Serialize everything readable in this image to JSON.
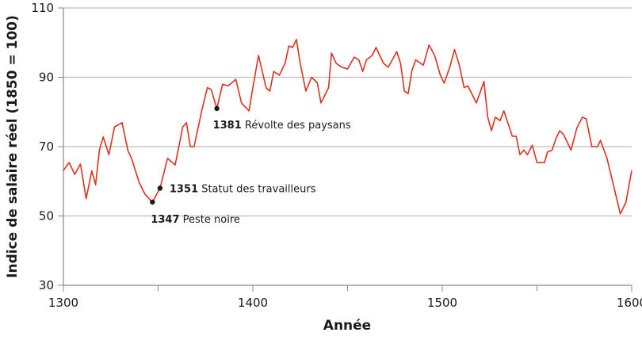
{
  "chart_data": {
    "type": "line",
    "title": "",
    "xlabel": "Année",
    "ylabel": "Indice de salaire réel (1850 = 100)",
    "xlim": [
      1300,
      1600
    ],
    "ylim": [
      30,
      110
    ],
    "xticks": [
      1300,
      1400,
      1500,
      1600
    ],
    "yticks": [
      30,
      50,
      70,
      90,
      110
    ],
    "grid": "horizontal",
    "line_color": "#e0301e",
    "series": [
      {
        "x": [
          1300,
          1303,
          1306,
          1309,
          1312,
          1315,
          1317,
          1319,
          1321,
          1324,
          1327,
          1331,
          1334,
          1336,
          1340,
          1343,
          1347,
          1351,
          1355,
          1359,
          1363,
          1365,
          1367,
          1369,
          1373,
          1376,
          1378,
          1381,
          1384,
          1387,
          1391,
          1394,
          1398,
          1400,
          1403,
          1407,
          1409,
          1411,
          1414,
          1417,
          1419,
          1421,
          1423,
          1425,
          1428,
          1431,
          1434,
          1436,
          1440,
          1441.5,
          1444,
          1447,
          1450,
          1453.5,
          1456,
          1458,
          1460,
          1463,
          1465,
          1469,
          1471.5,
          1476,
          1478,
          1480,
          1482,
          1484,
          1486,
          1490,
          1493,
          1496,
          1499,
          1501,
          1504,
          1506.5,
          1509,
          1511.5,
          1513.5,
          1518,
          1522,
          1524,
          1526,
          1528,
          1530.5,
          1532.5,
          1537,
          1539,
          1541,
          1543,
          1545,
          1547.5,
          1550,
          1554,
          1555.5,
          1558,
          1560,
          1562,
          1564,
          1568,
          1571,
          1574,
          1576,
          1579,
          1582,
          1583.5,
          1587,
          1594,
          1597,
          1600
        ],
        "y": [
          63.1,
          65.4,
          62,
          65,
          55,
          63,
          59,
          69,
          72.8,
          67.7,
          75.7,
          76.9,
          68.9,
          66.6,
          59.7,
          56.3,
          54,
          58,
          66.6,
          64.7,
          75.7,
          76.9,
          70,
          70,
          80.3,
          87,
          86.5,
          81,
          88,
          87.5,
          89.4,
          82.6,
          80.3,
          87,
          96.3,
          87,
          86,
          91.7,
          90.6,
          94,
          99,
          98.6,
          100.9,
          94,
          86,
          90,
          88.4,
          82.6,
          87,
          97,
          94,
          92.9,
          92.4,
          95.8,
          95,
          91.7,
          95,
          96.3,
          98.6,
          94,
          92.9,
          97.4,
          94,
          86,
          85.3,
          92,
          95,
          93.5,
          99.3,
          96.3,
          90.6,
          88.3,
          93,
          98,
          93.5,
          87,
          87.5,
          82.6,
          88.8,
          78.5,
          74.6,
          78.5,
          77.5,
          80.3,
          73,
          73,
          67.7,
          69,
          67.7,
          70.4,
          65.4,
          65.4,
          68.4,
          69,
          72.3,
          74.6,
          73.5,
          69,
          75.3,
          78.5,
          78,
          70,
          70,
          71.8,
          66.6,
          50.6,
          54,
          63.1
        ]
      }
    ],
    "annotations": [
      {
        "year": "1347",
        "text": "Peste noire",
        "x": 1347,
        "y": 54
      },
      {
        "year": "1351",
        "text": "Statut des travailleurs",
        "x": 1351,
        "y": 58
      },
      {
        "year": "1381",
        "text": "Révolte des paysans",
        "x": 1381,
        "y": 81
      }
    ]
  }
}
